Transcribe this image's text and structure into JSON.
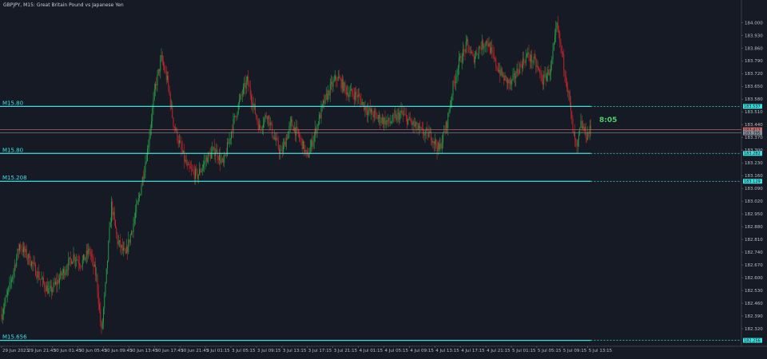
{
  "chart_data": {
    "type": "candlestick",
    "title": "GBPJPY, M15: Great Britain Pound vs Japanese Yen",
    "y_range": [
      182.25,
      184.08
    ],
    "y_ticks": [
      "184.000",
      "183.930",
      "183.860",
      "183.790",
      "183.720",
      "183.650",
      "183.580",
      "183.510",
      "183.440",
      "183.370",
      "183.300",
      "183.230",
      "183.160",
      "183.090",
      "183.020",
      "182.950",
      "182.880",
      "182.810",
      "182.740",
      "182.670",
      "182.600",
      "182.530",
      "182.460",
      "182.390",
      "182.320"
    ],
    "x_ticks": [
      "29 Jun 2023",
      "29 Jun 21:45",
      "30 Jun 01:45",
      "30 Jun 05:45",
      "30 Jun 09:45",
      "30 Jun 13:45",
      "30 Jun 17:45",
      "30 Jun 21:45",
      "3 Jul 01:15",
      "3 Jul 05:15",
      "3 Jul 09:15",
      "3 Jul 13:15",
      "3 Jul 17:15",
      "3 Jul 21:15",
      "4 Jul 01:15",
      "4 Jul 05:15",
      "4 Jul 09:15",
      "4 Jul 13:15",
      "4 Jul 17:15",
      "4 Jul 21:15",
      "5 Jul 01:15",
      "5 Jul 05:15",
      "5 Jul 09:15",
      "5 Jul 13:15"
    ],
    "levels": [
      {
        "label": "M15.80",
        "price": 183.54,
        "badge": "183.537",
        "color": "#3fe0e0"
      },
      {
        "label": "M15.80",
        "price": 183.282,
        "badge": "183.282",
        "color": "#3fe0e0"
      },
      {
        "label": "M15.208",
        "price": 183.129,
        "badge": "183.129",
        "color": "#3fe0e0"
      },
      {
        "label": "M15.656",
        "price": 182.256,
        "badge": "182.256",
        "color": "#3fe0e0"
      }
    ],
    "price_lines": [
      {
        "price": 183.412,
        "badge": "183.412",
        "color": "#c96a6a"
      },
      {
        "price": 183.395,
        "badge": "183.395",
        "color": "#8a8f99"
      }
    ],
    "countdown": "8:05",
    "colors": {
      "background": "#161a25",
      "bull": "#26a045",
      "bear": "#d0262a",
      "level": "#3fe0e0",
      "text": "#b8bcc6"
    },
    "grid": false,
    "keypoints": [
      [
        0,
        182.4
      ],
      [
        8,
        182.55
      ],
      [
        18,
        182.78
      ],
      [
        28,
        182.7
      ],
      [
        38,
        182.6
      ],
      [
        48,
        182.52
      ],
      [
        56,
        182.58
      ],
      [
        64,
        182.65
      ],
      [
        72,
        182.72
      ],
      [
        80,
        182.68
      ],
      [
        88,
        182.75
      ],
      [
        95,
        182.6
      ],
      [
        100,
        182.3
      ],
      [
        104,
        182.55
      ],
      [
        110,
        183.0
      ],
      [
        116,
        182.8
      ],
      [
        124,
        182.72
      ],
      [
        132,
        182.9
      ],
      [
        138,
        183.05
      ],
      [
        146,
        183.3
      ],
      [
        154,
        183.65
      ],
      [
        160,
        183.8
      ],
      [
        166,
        183.68
      ],
      [
        172,
        183.45
      ],
      [
        180,
        183.3
      ],
      [
        186,
        183.2
      ],
      [
        196,
        183.16
      ],
      [
        206,
        183.26
      ],
      [
        214,
        183.3
      ],
      [
        222,
        183.22
      ],
      [
        232,
        183.45
      ],
      [
        240,
        183.6
      ],
      [
        246,
        183.68
      ],
      [
        252,
        183.55
      ],
      [
        258,
        183.42
      ],
      [
        266,
        183.5
      ],
      [
        272,
        183.38
      ],
      [
        280,
        183.28
      ],
      [
        290,
        183.45
      ],
      [
        300,
        183.35
      ],
      [
        306,
        183.26
      ],
      [
        314,
        183.4
      ],
      [
        322,
        183.55
      ],
      [
        330,
        183.65
      ],
      [
        336,
        183.7
      ],
      [
        346,
        183.62
      ],
      [
        356,
        183.6
      ],
      [
        366,
        183.52
      ],
      [
        376,
        183.48
      ],
      [
        388,
        183.45
      ],
      [
        400,
        183.5
      ],
      [
        410,
        183.45
      ],
      [
        420,
        183.4
      ],
      [
        430,
        183.38
      ],
      [
        438,
        183.3
      ],
      [
        446,
        183.45
      ],
      [
        452,
        183.65
      ],
      [
        458,
        183.78
      ],
      [
        466,
        183.88
      ],
      [
        472,
        183.8
      ],
      [
        478,
        183.86
      ],
      [
        486,
        183.9
      ],
      [
        494,
        183.78
      ],
      [
        502,
        183.7
      ],
      [
        510,
        183.66
      ],
      [
        518,
        183.75
      ],
      [
        526,
        183.82
      ],
      [
        534,
        183.78
      ],
      [
        542,
        183.68
      ],
      [
        550,
        183.75
      ],
      [
        556,
        183.98
      ],
      [
        562,
        183.8
      ],
      [
        568,
        183.6
      ],
      [
        572,
        183.4
      ],
      [
        576,
        183.3
      ],
      [
        580,
        183.44
      ],
      [
        586,
        183.38
      ],
      [
        590,
        183.42
      ]
    ]
  }
}
